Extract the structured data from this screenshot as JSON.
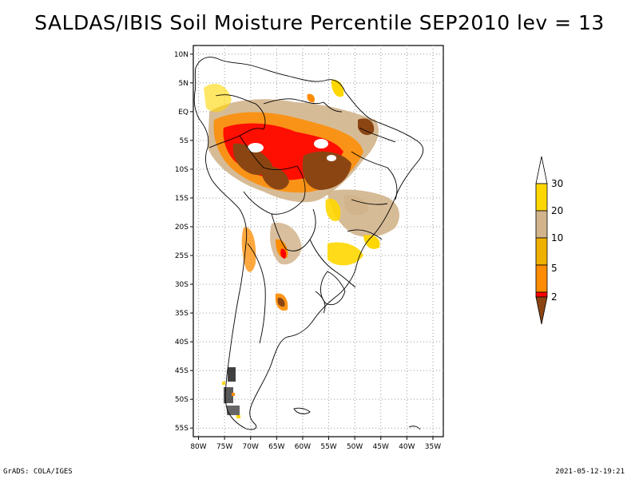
{
  "title": "SALDAS/IBIS Soil Moisture Percentile SEP2010 lev = 13",
  "footer": {
    "left": "GrADS: COLA/IGES",
    "right": "2021-05-12-19:21"
  },
  "axes": {
    "lat_labels": [
      "10N",
      "5N",
      "EQ",
      "5S",
      "10S",
      "15S",
      "20S",
      "25S",
      "30S",
      "35S",
      "40S",
      "45S",
      "50S",
      "55S"
    ],
    "lat_values": [
      10,
      5,
      0,
      -5,
      -10,
      -15,
      -20,
      -25,
      -30,
      -35,
      -40,
      -45,
      -50,
      -55
    ],
    "lon_labels": [
      "80W",
      "75W",
      "70W",
      "65W",
      "60W",
      "55W",
      "50W",
      "45W",
      "40W",
      "35W"
    ],
    "lon_values": [
      -80,
      -75,
      -70,
      -65,
      -60,
      -55,
      -50,
      -45,
      -40,
      -35
    ],
    "lon_range": [
      -81,
      -33
    ],
    "lat_range": [
      11.5,
      -56.5
    ],
    "grid": "dotted"
  },
  "legend": {
    "labels": [
      "2",
      "5",
      "10",
      "20",
      "30"
    ],
    "colors": {
      "below_2": "#8b4513",
      "2_5": "#ff0000",
      "5_10": "#ff8c00",
      "10_20": "#f0b000",
      "20_30": "#d2b48c",
      "30_up": "#ffd700",
      "above": "#ffffff"
    }
  },
  "colors": {
    "c_brown": "#8b4513",
    "c_red": "#ff0000",
    "c_orange": "#ff8c00",
    "c_tan": "#d2b48c",
    "c_yellow": "#ffd700"
  }
}
